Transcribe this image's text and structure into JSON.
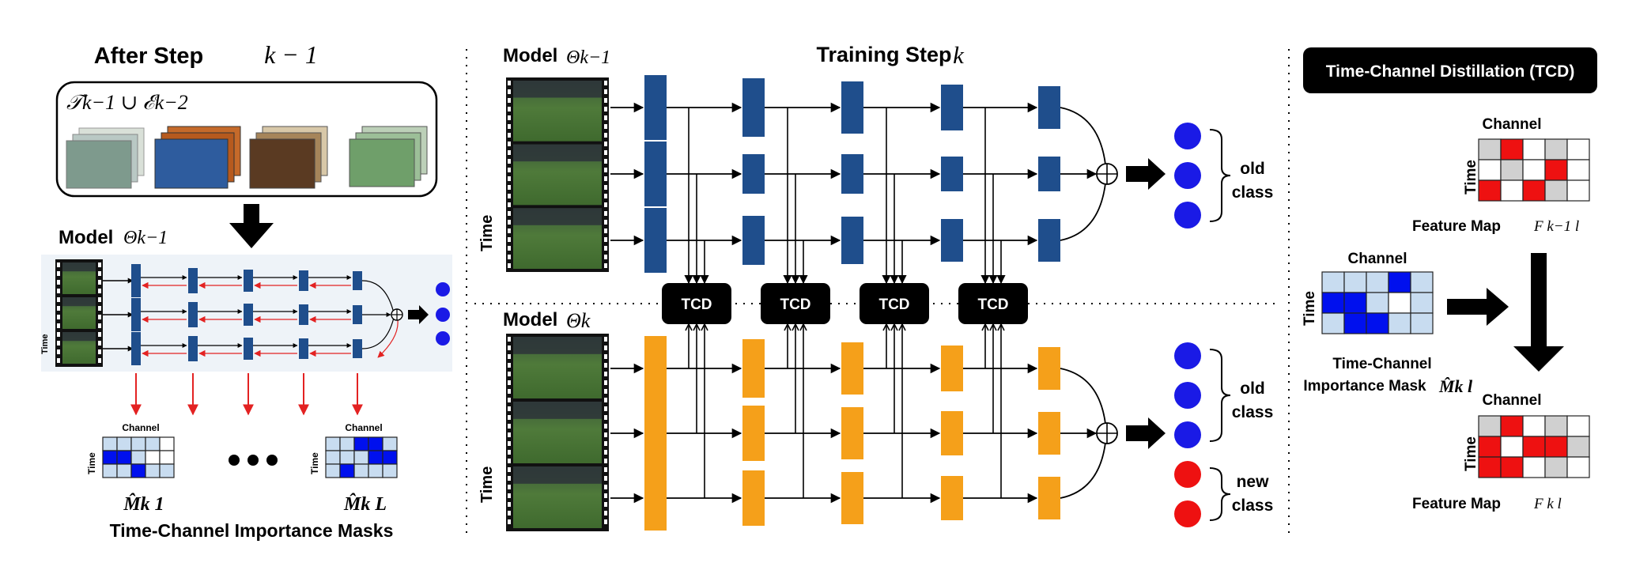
{
  "colors": {
    "blue_block": "#1f4e8c",
    "orange_block": "#f5a01a",
    "red_arrow": "#e32222",
    "mask_blue": "#0010ee",
    "mask_light": "#c8dcf0",
    "map_red": "#ee1111",
    "map_grey": "#d0d0d0",
    "panel_bg": "#eef3f8",
    "blue_circle": "#1a1ae6",
    "red_circle": "#ee1111"
  },
  "left": {
    "title": "After Step",
    "title_math": "k − 1",
    "dataset_label": "𝒯k−1 ∪ ℰk−2",
    "model_label": "Model",
    "model_math": "Θk−1",
    "time_label": "Time",
    "channel_label": "Channel",
    "mask_first_math": "M̂k 1",
    "mask_last_math": "M̂k L",
    "masks_caption": "Time-Channel Importance Masks"
  },
  "middle": {
    "title": "Training Step",
    "title_math": "k",
    "model_old_label": "Model",
    "model_old_math": "Θk−1",
    "model_new_label": "Model",
    "model_new_math": "Θk",
    "time_label": "Time",
    "tcd_label": "TCD",
    "old_class": [
      "old",
      "class"
    ],
    "new_class": [
      "new",
      "class"
    ]
  },
  "right": {
    "title": "Time-Channel Distillation (TCD)",
    "channel_label": "Channel",
    "time_label": "Time",
    "fmap_prev": "Feature Map",
    "fmap_prev_math": "F k−1 l",
    "mask_caption_1": "Time-Channel",
    "mask_caption_2": "Importance Mask",
    "mask_math": "M̂k l",
    "fmap_cur": "Feature Map",
    "fmap_cur_math": "F k l"
  },
  "masks": {
    "left_first": [
      [
        1,
        1,
        1,
        1,
        0
      ],
      [
        2,
        2,
        1,
        0,
        0
      ],
      [
        1,
        1,
        2,
        1,
        1
      ]
    ],
    "left_last": [
      [
        1,
        1,
        2,
        2,
        1
      ],
      [
        1,
        1,
        1,
        2,
        2
      ],
      [
        1,
        2,
        1,
        1,
        1
      ]
    ],
    "right": [
      [
        1,
        1,
        1,
        2,
        1
      ],
      [
        2,
        2,
        1,
        0,
        1
      ],
      [
        1,
        2,
        2,
        1,
        1
      ]
    ]
  },
  "feature_maps": {
    "prev": [
      [
        3,
        2,
        0,
        3,
        0
      ],
      [
        0,
        3,
        0,
        2,
        0
      ],
      [
        2,
        0,
        2,
        3,
        0
      ]
    ],
    "cur": [
      [
        3,
        2,
        0,
        3,
        0
      ],
      [
        2,
        0,
        2,
        2,
        3
      ],
      [
        2,
        2,
        0,
        3,
        0
      ]
    ]
  }
}
